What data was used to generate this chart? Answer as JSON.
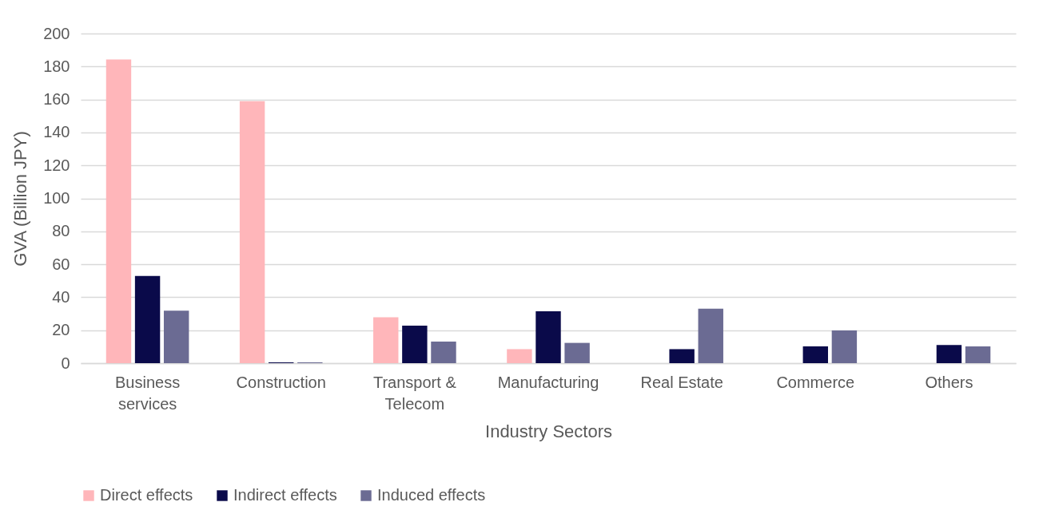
{
  "chart_data": {
    "type": "bar",
    "xlabel": "Industry Sectors",
    "ylabel": "GVA (Billion JPY)",
    "categories": [
      "Business services",
      "Construction",
      "Transport & Telecom",
      "Manufacturing",
      "Real Estate",
      "Commerce",
      "Others"
    ],
    "series": [
      {
        "name": "Direct effects",
        "color": "#ffb6ba",
        "values": [
          184.3,
          159,
          27.9,
          8.5,
          0,
          0,
          0
        ]
      },
      {
        "name": "Indirect effects",
        "color": "#0a0a4a",
        "values": [
          52.9,
          0.5,
          22.7,
          31.5,
          8.5,
          10.2,
          11
        ]
      },
      {
        "name": "Induced effects",
        "color": "#6b6b93",
        "values": [
          31.8,
          0.5,
          13.1,
          12.3,
          33,
          19.8,
          10.2
        ]
      }
    ],
    "ylim": [
      0,
      200
    ],
    "yticks": [
      0,
      20,
      40,
      60,
      80,
      100,
      120,
      140,
      160,
      180,
      200
    ],
    "grid": "y",
    "legend": "bottom"
  }
}
